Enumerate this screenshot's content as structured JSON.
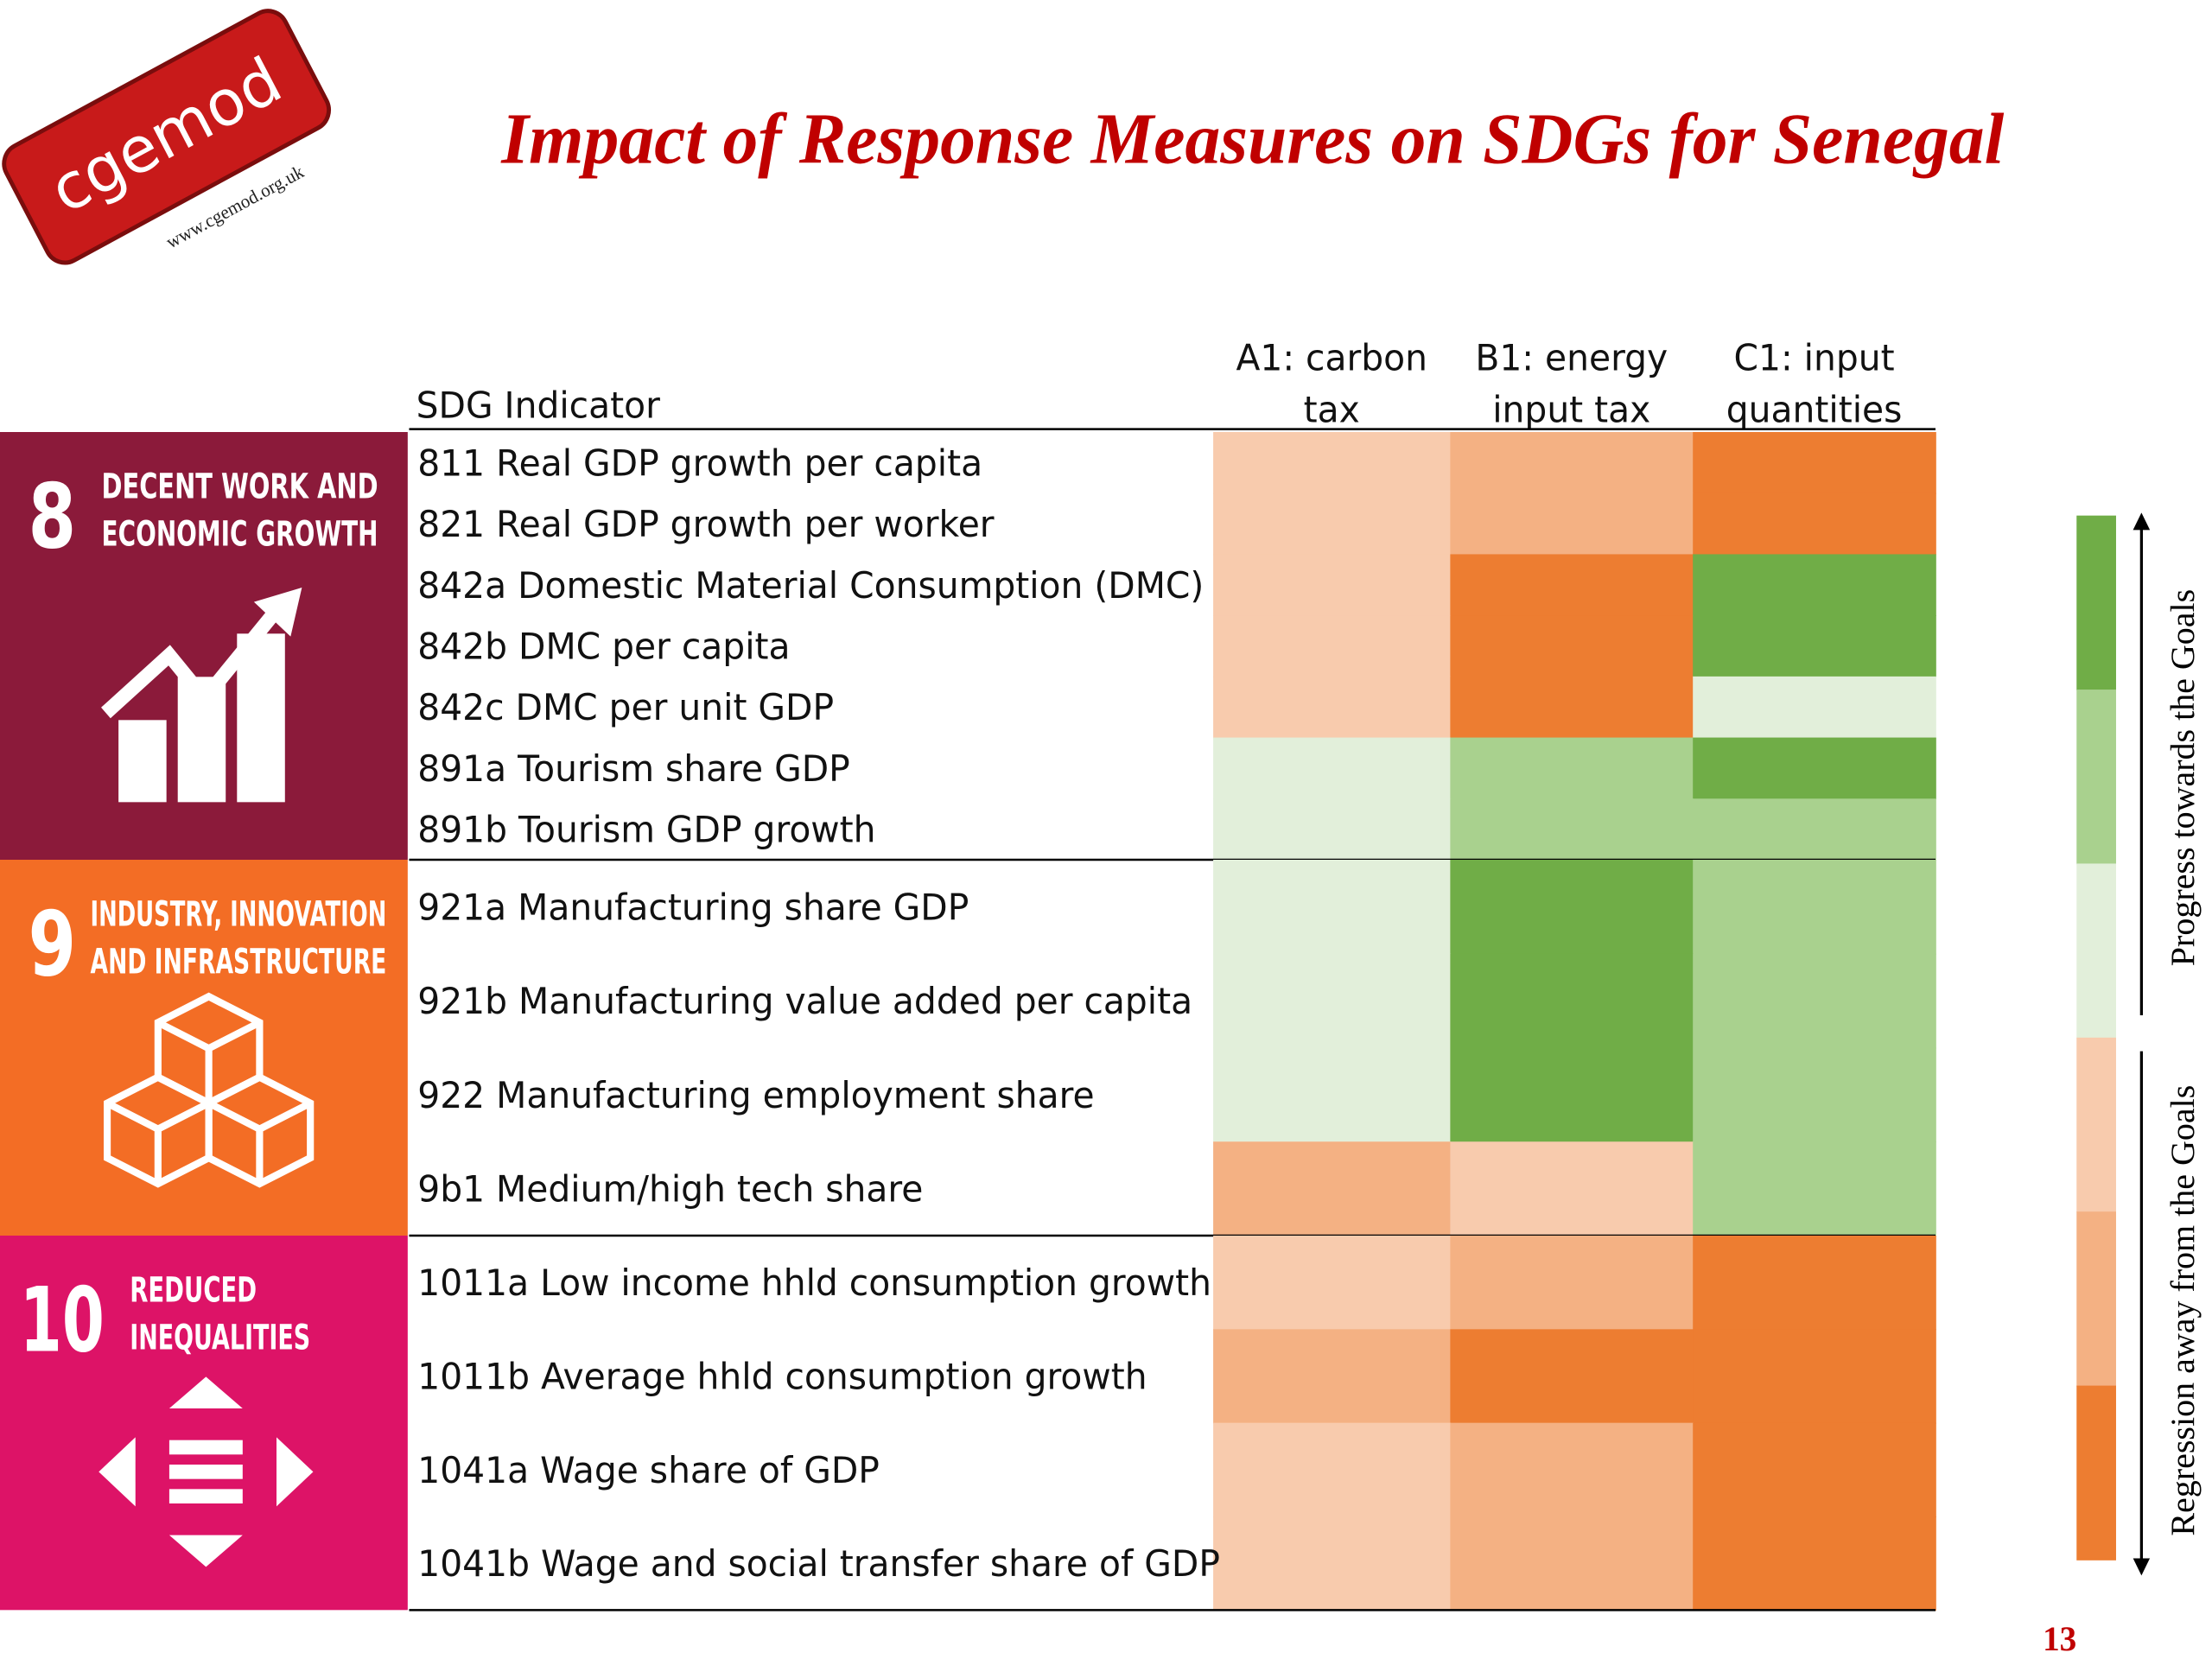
{
  "title": "Impact of Response Measures on SDGs for Senegal",
  "logo": {
    "name": "cgemod",
    "url": "www.cgemod.org.uk"
  },
  "table": {
    "indicator_header": "SDG Indicator",
    "columns": [
      [
        "A1: carbon",
        "tax"
      ],
      [
        "B1: energy",
        "input tax"
      ],
      [
        "C1: input",
        "quantities"
      ]
    ],
    "groups": [
      {
        "number": "8",
        "title": [
          "DECENT WORK AND",
          "ECONOMIC GROWTH"
        ],
        "color": "#8b1a3a",
        "rows": [
          {
            "label": "811  Real GDP growth per capita",
            "cells": [
              "#f8cbad",
              "#f4b183",
              "#ed7d31"
            ]
          },
          {
            "label": "821  Real GDP growth per worker",
            "cells": [
              "#f8cbad",
              "#f4b183",
              "#ed7d31"
            ]
          },
          {
            "label": "842a Domestic Material Consumption (DMC)",
            "cells": [
              "#f8cbad",
              "#ed7d31",
              "#70ad47"
            ]
          },
          {
            "label": "842b DMC per capita",
            "cells": [
              "#f8cbad",
              "#ed7d31",
              "#70ad47"
            ]
          },
          {
            "label": "842c DMC per unit GDP",
            "cells": [
              "#f8cbad",
              "#ed7d31",
              "#e2efda"
            ]
          },
          {
            "label": "891a Tourism share GDP",
            "cells": [
              "#e2efda",
              "#a9d18e",
              "#70ad47"
            ]
          },
          {
            "label": "891b Tourism GDP growth",
            "cells": [
              "#e2efda",
              "#a9d18e",
              "#a9d18e"
            ]
          }
        ]
      },
      {
        "number": "9",
        "title": [
          "INDUSTRY, INNOVATION",
          "AND INFRASTRUCTURE"
        ],
        "color": "#f36d25",
        "rows": [
          {
            "label": "921a Manufacturing share GDP",
            "cells": [
              "#e2efda",
              "#70ad47",
              "#a9d18e"
            ]
          },
          {
            "label": "921b Manufacturing value added per capita",
            "cells": [
              "#e2efda",
              "#70ad47",
              "#a9d18e"
            ]
          },
          {
            "label": "922 Manufacturing employment share",
            "cells": [
              "#e2efda",
              "#70ad47",
              "#a9d18e"
            ]
          },
          {
            "label": "9b1 Medium/high tech share",
            "cells": [
              "#f4b183",
              "#f8cbad",
              "#a9d18e"
            ]
          }
        ]
      },
      {
        "number": "10",
        "title": [
          "REDUCED",
          "INEQUALITIES"
        ],
        "color": "#dd1367",
        "rows": [
          {
            "label": "1011a Low income hhld consumption growth",
            "cells": [
              "#f8cbad",
              "#f4b183",
              "#ed7d31"
            ]
          },
          {
            "label": "1011b Average hhld consumption growth",
            "cells": [
              "#f4b183",
              "#ed7d31",
              "#ed7d31"
            ]
          },
          {
            "label": "1041a Wage share of GDP",
            "cells": [
              "#f8cbad",
              "#f4b183",
              "#ed7d31"
            ]
          },
          {
            "label": "1041b Wage and social transfer share of GDP",
            "cells": [
              "#f8cbad",
              "#f4b183",
              "#ed7d31"
            ]
          }
        ]
      }
    ]
  },
  "legend": {
    "colors": [
      "#70ad47",
      "#a9d18e",
      "#e2efda",
      "#f8cbad",
      "#f4b183",
      "#ed7d31"
    ],
    "progress": "Progress towards the Goals",
    "regression": "Regression away from the Goals"
  },
  "page_number": "13"
}
